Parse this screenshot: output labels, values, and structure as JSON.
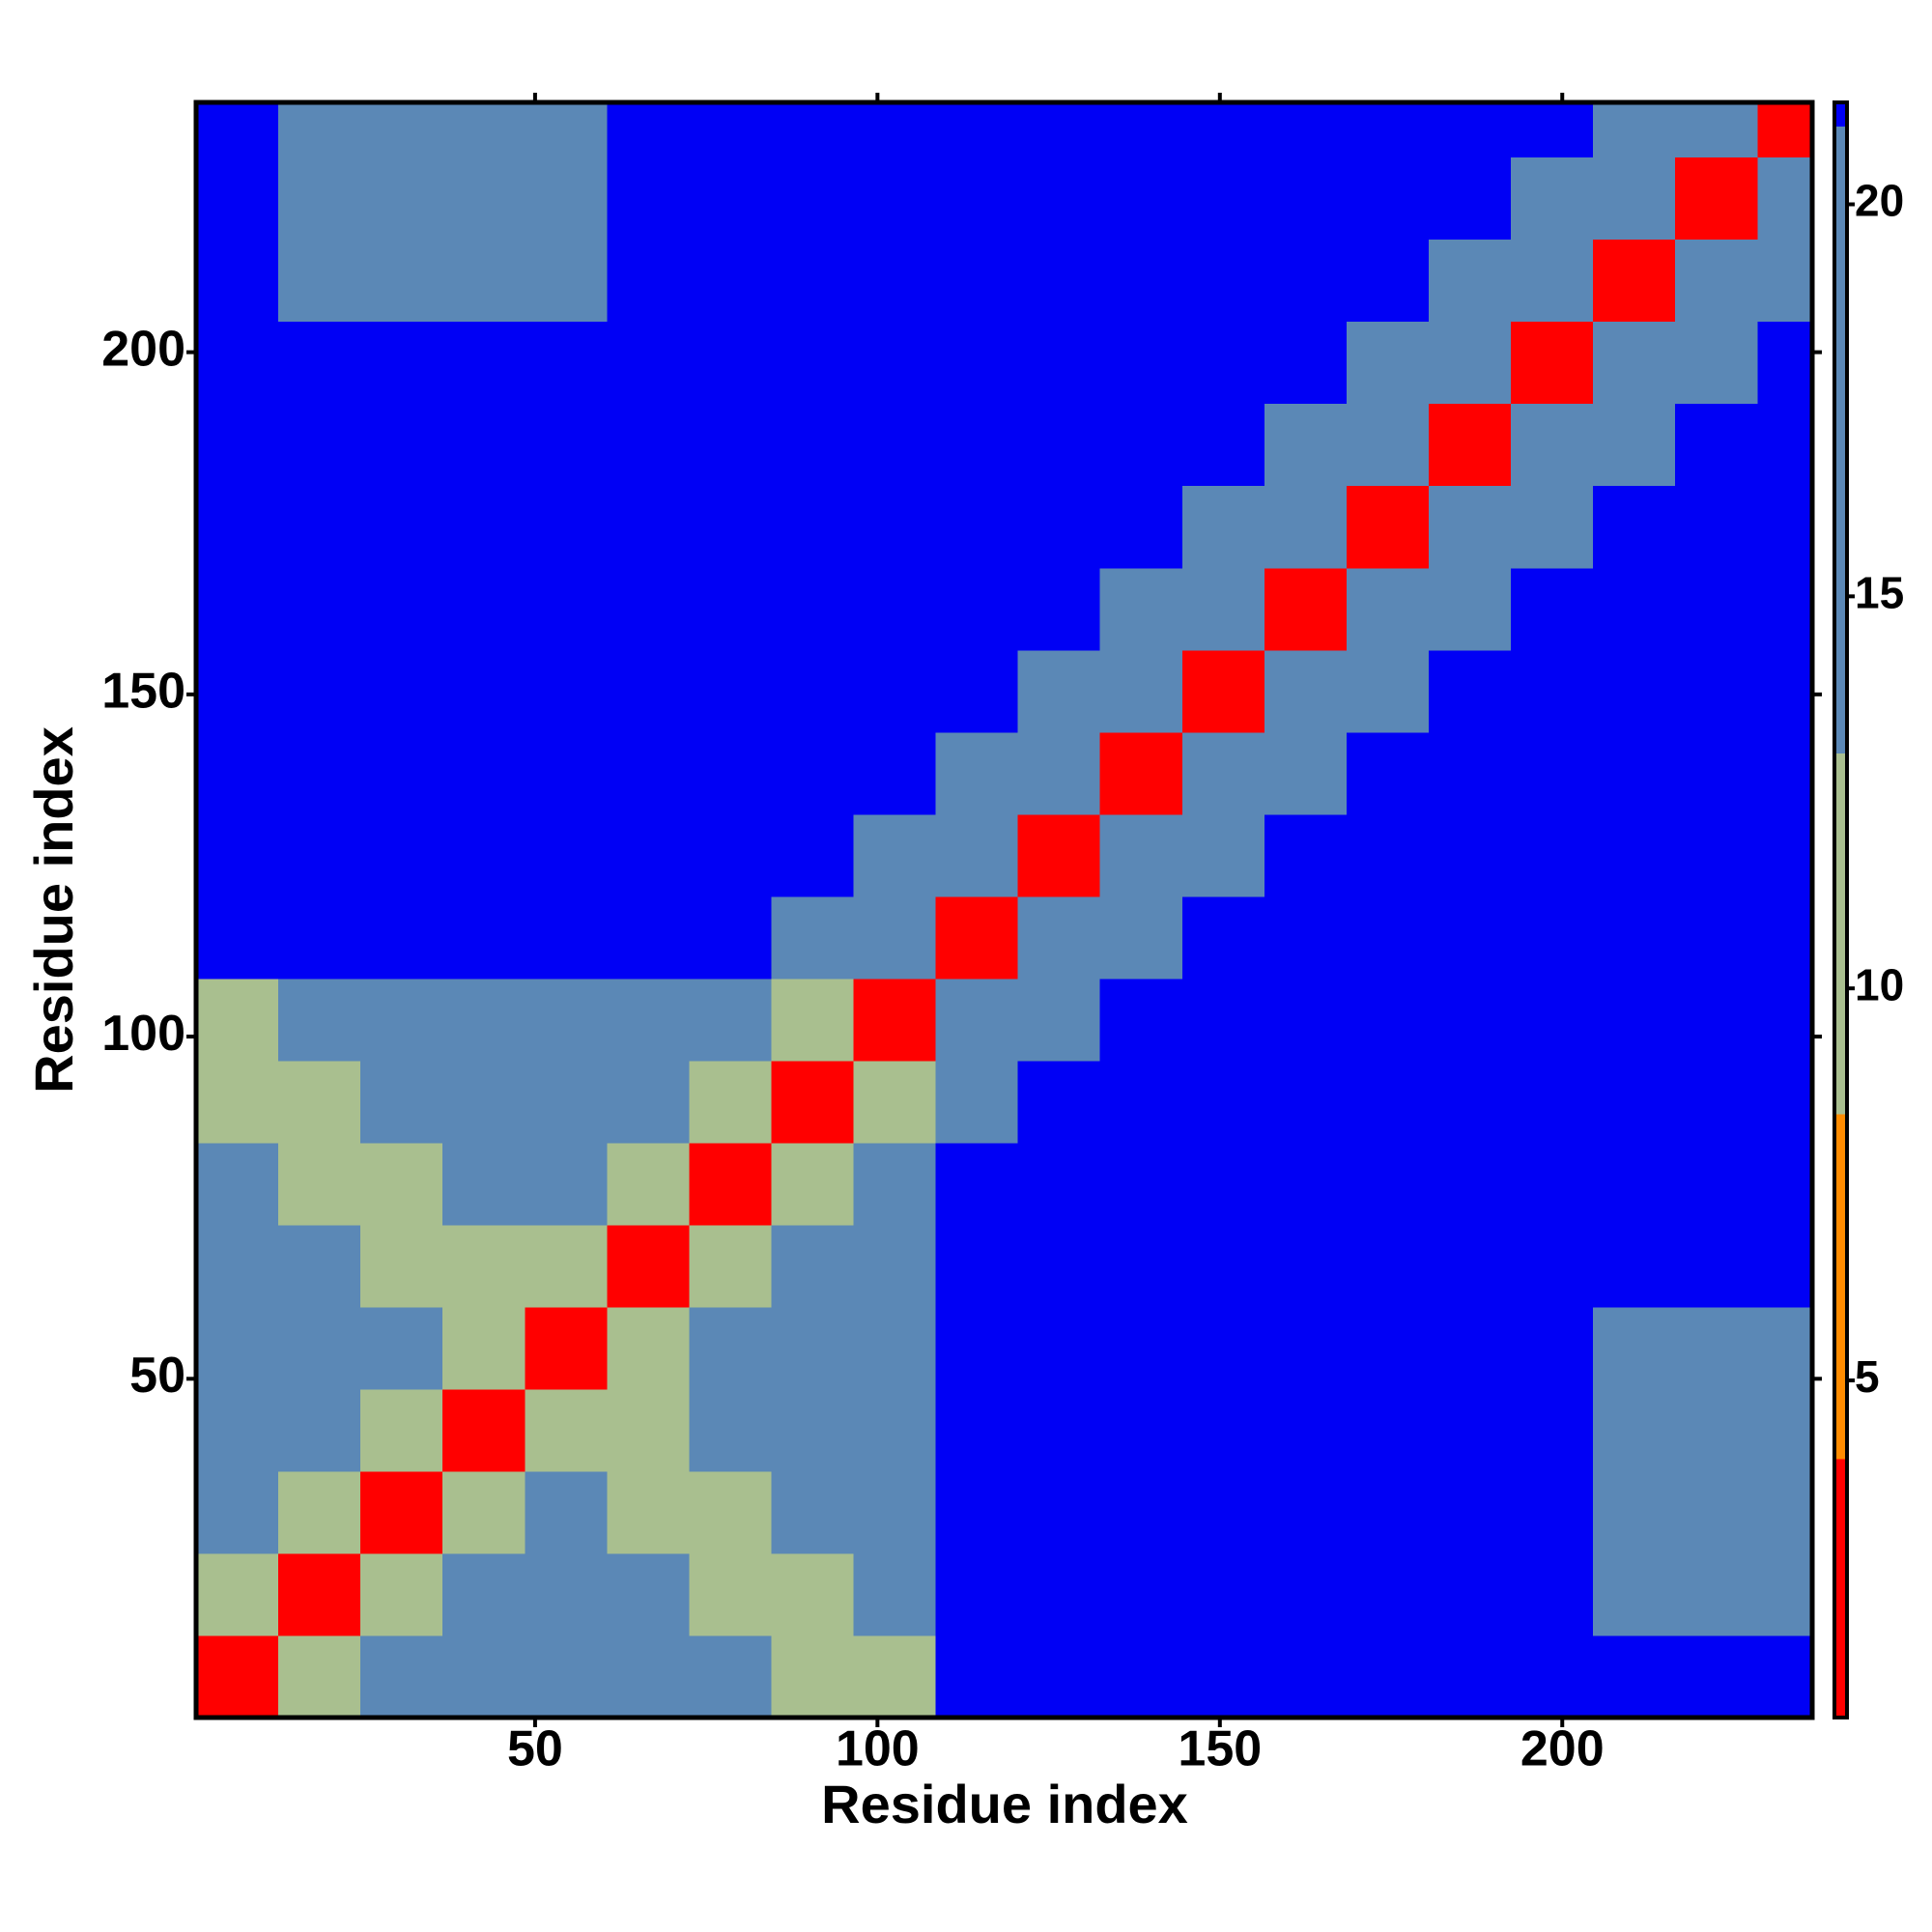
{
  "chart_data": {
    "type": "heatmap",
    "x_label": "Residue index",
    "y_label": "Residue index",
    "x_bins": [
      0.5,
      12.5,
      24.5,
      36.5,
      48.5,
      60.5,
      72.5,
      84.5,
      96.5,
      108.5,
      120.5,
      132.5,
      144.5,
      156.5,
      168.5,
      180.5,
      192.5,
      204.5,
      216.5,
      228.5,
      236.5
    ],
    "y_bins": [
      0.5,
      12.5,
      24.5,
      36.5,
      48.5,
      60.5,
      72.5,
      84.5,
      96.5,
      108.5,
      120.5,
      132.5,
      144.5,
      156.5,
      168.5,
      180.5,
      192.5,
      204.5,
      216.5,
      228.5,
      236.5
    ],
    "values": [
      [
        3,
        10,
        15,
        15,
        15,
        15,
        15,
        11,
        11,
        25,
        25,
        25,
        25,
        25,
        25,
        25,
        25,
        25,
        25,
        25
      ],
      [
        10,
        3,
        10,
        15,
        15,
        15,
        11,
        11,
        15,
        25,
        25,
        25,
        25,
        25,
        25,
        25,
        25,
        20,
        20,
        20
      ],
      [
        15,
        10,
        3,
        10,
        15,
        11,
        11,
        15,
        15,
        25,
        25,
        25,
        25,
        25,
        25,
        25,
        25,
        20,
        20,
        20
      ],
      [
        15,
        15,
        10,
        3,
        10,
        11,
        20,
        20,
        15,
        25,
        25,
        25,
        25,
        25,
        25,
        25,
        25,
        20,
        20,
        20
      ],
      [
        15,
        15,
        15,
        10,
        3,
        10,
        20,
        20,
        15,
        25,
        25,
        25,
        25,
        25,
        25,
        25,
        25,
        20,
        20,
        20
      ],
      [
        15,
        15,
        11,
        11,
        10,
        3,
        10,
        15,
        15,
        25,
        25,
        25,
        25,
        25,
        25,
        25,
        25,
        25,
        25,
        25
      ],
      [
        15,
        11,
        11,
        20,
        20,
        10,
        3,
        10,
        15,
        25,
        25,
        25,
        25,
        25,
        25,
        25,
        25,
        25,
        25,
        25
      ],
      [
        11,
        11,
        15,
        20,
        20,
        15,
        10,
        3,
        10,
        20,
        25,
        25,
        25,
        25,
        25,
        25,
        25,
        25,
        25,
        25
      ],
      [
        11,
        15,
        15,
        15,
        15,
        15,
        15,
        10,
        3,
        13,
        20,
        25,
        25,
        25,
        25,
        25,
        25,
        25,
        25,
        25
      ],
      [
        25,
        25,
        25,
        25,
        25,
        25,
        25,
        20,
        13,
        3,
        13,
        20,
        25,
        25,
        25,
        25,
        25,
        25,
        25,
        25
      ],
      [
        25,
        25,
        25,
        25,
        25,
        25,
        25,
        25,
        20,
        13,
        3,
        13,
        20,
        25,
        25,
        25,
        25,
        25,
        25,
        25
      ],
      [
        25,
        25,
        25,
        25,
        25,
        25,
        25,
        25,
        25,
        20,
        13,
        3,
        13,
        20,
        25,
        25,
        25,
        25,
        25,
        25
      ],
      [
        25,
        25,
        25,
        25,
        25,
        25,
        25,
        25,
        25,
        25,
        20,
        13,
        3,
        13,
        20,
        25,
        25,
        25,
        25,
        25
      ],
      [
        25,
        25,
        25,
        25,
        25,
        25,
        25,
        25,
        25,
        25,
        25,
        20,
        13,
        3,
        13,
        20,
        25,
        25,
        25,
        25
      ],
      [
        25,
        25,
        25,
        25,
        25,
        25,
        25,
        25,
        25,
        25,
        25,
        25,
        20,
        13,
        3,
        13,
        20,
        25,
        25,
        25
      ],
      [
        25,
        25,
        25,
        25,
        25,
        25,
        25,
        25,
        25,
        25,
        25,
        25,
        25,
        20,
        13,
        3,
        13,
        20,
        25,
        25
      ],
      [
        25,
        25,
        25,
        25,
        25,
        25,
        25,
        25,
        25,
        25,
        25,
        25,
        25,
        25,
        20,
        13,
        3,
        13,
        20,
        25
      ],
      [
        25,
        20,
        20,
        20,
        20,
        25,
        25,
        25,
        25,
        25,
        25,
        25,
        25,
        25,
        25,
        20,
        13,
        3,
        13,
        20
      ],
      [
        25,
        20,
        20,
        20,
        20,
        25,
        25,
        25,
        25,
        25,
        25,
        25,
        25,
        25,
        25,
        25,
        20,
        13,
        3,
        13
      ],
      [
        25,
        20,
        20,
        20,
        20,
        25,
        25,
        25,
        25,
        25,
        25,
        25,
        25,
        25,
        25,
        25,
        25,
        20,
        13,
        3
      ]
    ],
    "xlim": [
      0.5,
      236.5
    ],
    "ylim": [
      0.5,
      236.5
    ],
    "xticks": [
      50,
      100,
      150,
      200
    ],
    "yticks": [
      50,
      100,
      150,
      200
    ],
    "colorbar": {
      "stops": [
        0.7,
        4,
        8.4,
        13,
        21,
        21.3
      ],
      "colors": [
        "#ff0000",
        "#ff8c00",
        "#a9bf8f",
        "#5b88b6",
        "#0000f5"
      ],
      "ticks": [
        5,
        10,
        15,
        20
      ]
    }
  }
}
